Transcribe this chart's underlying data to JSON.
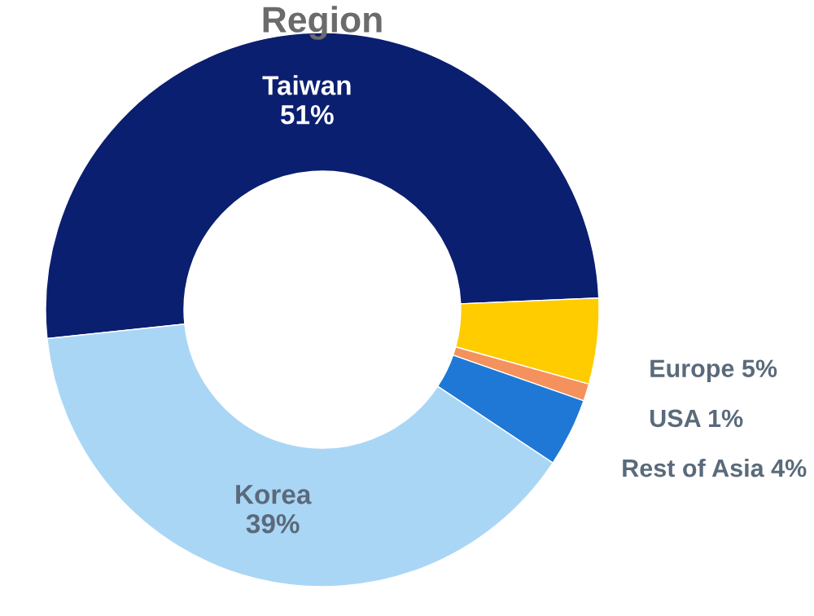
{
  "chart_data": {
    "type": "donut",
    "title": "Region",
    "categories": [
      "Taiwan",
      "Europe",
      "USA",
      "Rest of Asia",
      "Korea"
    ],
    "values": [
      51,
      5,
      1,
      4,
      39
    ],
    "colors": [
      "#0b1f70",
      "#ffcc00",
      "#f4915c",
      "#1f78d6",
      "#aad6f6"
    ],
    "value_labels": [
      "51%",
      "5%",
      "1%",
      "4%",
      "39%"
    ],
    "legend": false
  }
}
